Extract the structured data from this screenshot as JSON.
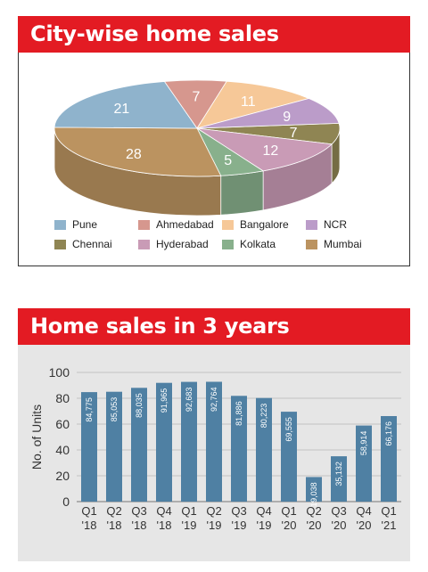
{
  "pie_panel": {
    "title": "City-wise home sales"
  },
  "bar_panel": {
    "title": "Home sales in 3 years"
  },
  "chart_data": [
    {
      "type": "pie",
      "title": "City-wise home sales",
      "slices": [
        {
          "label": "Pune",
          "value": 21,
          "color": "#8fb3cc"
        },
        {
          "label": "Ahmedabad",
          "value": 7,
          "color": "#d6978e"
        },
        {
          "label": "Bangalore",
          "value": 11,
          "color": "#f6c898"
        },
        {
          "label": "NCR",
          "value": 9,
          "color": "#bb9cc9"
        },
        {
          "label": "Chennai",
          "value": 7,
          "color": "#8f8553"
        },
        {
          "label": "Hyderabad",
          "value": 12,
          "color": "#c99bb6"
        },
        {
          "label": "Kolkata",
          "value": 5,
          "color": "#88b08c"
        },
        {
          "label": "Mumbai",
          "value": 28,
          "color": "#bb9360"
        }
      ],
      "legend": [
        "Pune",
        "Ahmedabad",
        "Bangalore",
        "NCR",
        "Chennai",
        "Hyderabad",
        "Kolkata",
        "Mumbai"
      ],
      "legend_position": "bottom"
    },
    {
      "type": "bar",
      "title": "Home sales in 3 years",
      "ylabel": "No. of Units",
      "ylim": [
        0,
        100
      ],
      "yticks": [
        "0",
        "20",
        "40",
        "60",
        "80",
        "100"
      ],
      "grid": true,
      "bar_color": "#4f80a3",
      "categories": [
        [
          "Q1",
          "'18"
        ],
        [
          "Q2",
          "'18"
        ],
        [
          "Q3",
          "'18"
        ],
        [
          "Q4",
          "'18"
        ],
        [
          "Q1",
          "'19"
        ],
        [
          "Q2",
          "'19"
        ],
        [
          "Q3",
          "'19"
        ],
        [
          "Q4",
          "'19"
        ],
        [
          "Q1",
          "'20"
        ],
        [
          "Q2",
          "'20"
        ],
        [
          "Q3",
          "'20"
        ],
        [
          "Q4",
          "'20"
        ],
        [
          "Q1",
          "'21"
        ]
      ],
      "values": [
        84.775,
        85.053,
        88.035,
        91.965,
        92.683,
        92.764,
        81.886,
        80.223,
        69.555,
        19.038,
        35.132,
        58.914,
        66.176
      ],
      "data_labels": [
        "84,775",
        "85,053",
        "88,035",
        "91,965",
        "92,683",
        "92,764",
        "81,886",
        "80,223",
        "69,555",
        "19,038",
        "35,132",
        "58,914",
        "66,176"
      ]
    }
  ]
}
